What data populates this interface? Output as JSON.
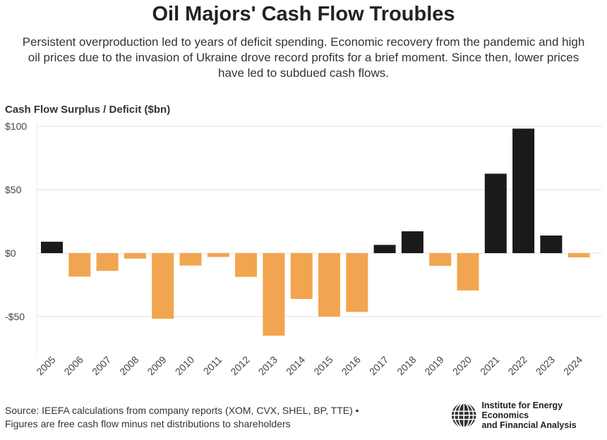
{
  "title": "Oil Majors' Cash Flow Troubles",
  "subtitle": "Persistent overproduction led to years of deficit spending. Economic recovery from the pandemic and high oil prices due to the invasion of Ukraine drove record profits for a brief moment. Since then, lower prices have led to subdued cash flows.",
  "source_line1": "Source: IEEFA calculations from company reports (XOM, CVX, SHEL, BP, TTE) •",
  "source_line2": "Figures are free cash flow minus net distributions to shareholders",
  "logo": {
    "line1": "Institute for Energy Economics",
    "line2": "and Financial Analysis"
  },
  "colors": {
    "positive": "#1a1a1a",
    "negative": "#f2a550",
    "grid": "#ebebeb"
  },
  "chart_data": {
    "type": "bar",
    "title": "Oil Majors' Cash Flow Troubles",
    "ylabel": "Cash Flow Surplus / Deficit ($bn)",
    "xlabel": "",
    "categories": [
      "2005",
      "2006",
      "2007",
      "2008",
      "2009",
      "2010",
      "2011",
      "2012",
      "2013",
      "2014",
      "2015",
      "2016",
      "2017",
      "2018",
      "2019",
      "2020",
      "2021",
      "2022",
      "2023",
      "2024"
    ],
    "values": [
      9,
      -18.5,
      -14,
      -4.3,
      -51.7,
      -9.8,
      -3,
      -18.7,
      -65,
      -36.1,
      -50,
      -46.3,
      6.5,
      17.2,
      -10,
      -29.4,
      62.6,
      98.1,
      13.9,
      -3.3
    ],
    "ylim": [
      -80,
      100
    ],
    "yticks": [
      100,
      50,
      0,
      -50
    ],
    "ytick_labels": [
      "$100",
      "$50",
      "$0",
      "-$50"
    ],
    "grid": true,
    "legend": "none"
  }
}
